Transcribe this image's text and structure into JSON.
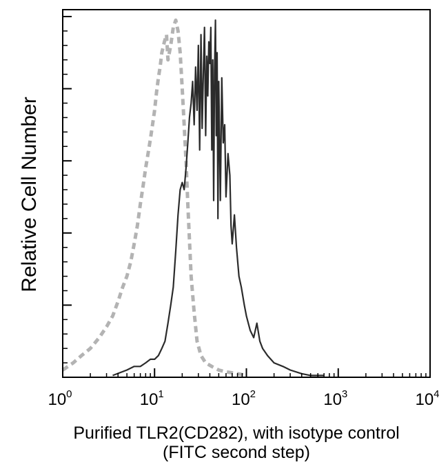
{
  "chart_data": {
    "type": "line",
    "title": "",
    "ylabel": "Relative Cell Number",
    "xlabel_lines": [
      "Purified TLR2(CD282), with isotype control",
      "(FITC second step)"
    ],
    "x_scale": "log",
    "xlim": [
      1,
      10000
    ],
    "ylim": [
      0,
      100
    ],
    "x_ticks": [
      {
        "base": "10",
        "exp": "0",
        "value": 1
      },
      {
        "base": "10",
        "exp": "1",
        "value": 10
      },
      {
        "base": "10",
        "exp": "2",
        "value": 100
      },
      {
        "base": "10",
        "exp": "3",
        "value": 1000
      },
      {
        "base": "10",
        "exp": "4",
        "value": 10000
      }
    ],
    "grid": false,
    "series": [
      {
        "role": "isotype control",
        "color": "#b3b3b3",
        "dash": true,
        "points": [
          [
            1.0,
            2
          ],
          [
            1.3,
            4
          ],
          [
            1.6,
            6
          ],
          [
            2.0,
            8
          ],
          [
            2.5,
            11
          ],
          [
            3.0,
            14
          ],
          [
            3.5,
            17
          ],
          [
            4.0,
            21
          ],
          [
            4.5,
            25
          ],
          [
            5.0,
            28
          ],
          [
            5.5,
            32
          ],
          [
            6.0,
            37
          ],
          [
            6.5,
            42
          ],
          [
            7.0,
            48
          ],
          [
            7.5,
            53
          ],
          [
            8.0,
            58
          ],
          [
            8.5,
            62
          ],
          [
            9.0,
            66
          ],
          [
            9.5,
            70
          ],
          [
            10.0,
            74
          ],
          [
            10.5,
            79
          ],
          [
            11.0,
            83
          ],
          [
            11.5,
            86
          ],
          [
            12.0,
            90
          ],
          [
            12.8,
            93
          ],
          [
            13.5,
            95
          ],
          [
            14.0,
            88
          ],
          [
            15.0,
            92
          ],
          [
            16.0,
            97
          ],
          [
            17.0,
            99
          ],
          [
            18.0,
            96
          ],
          [
            19.0,
            90
          ],
          [
            20.0,
            80
          ],
          [
            21.0,
            70
          ],
          [
            22.0,
            60
          ],
          [
            23.0,
            48
          ],
          [
            24.0,
            38
          ],
          [
            25.0,
            28
          ],
          [
            27.0,
            18
          ],
          [
            29.0,
            10
          ],
          [
            32.0,
            6
          ],
          [
            36.0,
            4
          ],
          [
            42.0,
            3
          ],
          [
            50.0,
            2
          ],
          [
            60.0,
            1.5
          ],
          [
            80.0,
            1
          ],
          [
            100.0,
            0.5
          ]
        ]
      },
      {
        "role": "TLR2",
        "color": "#2b2b2b",
        "dash": false,
        "points": [
          [
            3.5,
            0.5
          ],
          [
            5.0,
            2
          ],
          [
            6.0,
            3
          ],
          [
            7.0,
            3
          ],
          [
            8.0,
            4
          ],
          [
            9.0,
            5
          ],
          [
            10.0,
            5
          ],
          [
            11.0,
            6
          ],
          [
            12.0,
            8
          ],
          [
            13.0,
            10
          ],
          [
            14.0,
            15
          ],
          [
            15.0,
            20
          ],
          [
            16.0,
            25
          ],
          [
            17.0,
            35
          ],
          [
            18.0,
            45
          ],
          [
            19.0,
            52
          ],
          [
            20.0,
            54
          ],
          [
            21.0,
            52
          ],
          [
            22.0,
            58
          ],
          [
            23.0,
            65
          ],
          [
            24.0,
            72
          ],
          [
            25.0,
            76
          ],
          [
            26.0,
            82
          ],
          [
            27.0,
            70
          ],
          [
            28.0,
            86
          ],
          [
            29.0,
            74
          ],
          [
            30.0,
            92
          ],
          [
            31.0,
            63
          ],
          [
            32.0,
            95
          ],
          [
            33.0,
            69
          ],
          [
            34.0,
            85
          ],
          [
            35.0,
            97
          ],
          [
            36.0,
            67
          ],
          [
            37.0,
            89
          ],
          [
            38.0,
            78
          ],
          [
            39.0,
            93
          ],
          [
            40.0,
            87
          ],
          [
            41.0,
            97
          ],
          [
            42.0,
            63
          ],
          [
            43.0,
            88
          ],
          [
            44.0,
            49
          ],
          [
            45.0,
            85
          ],
          [
            46.0,
            99
          ],
          [
            47.0,
            67
          ],
          [
            48.0,
            90
          ],
          [
            49.0,
            44
          ],
          [
            50.0,
            82
          ],
          [
            52.0,
            49
          ],
          [
            54.0,
            83
          ],
          [
            56.0,
            65
          ],
          [
            58.0,
            70
          ],
          [
            60.0,
            50
          ],
          [
            63.0,
            62
          ],
          [
            66.0,
            56
          ],
          [
            68.0,
            42
          ],
          [
            70.0,
            37
          ],
          [
            74.0,
            45
          ],
          [
            78.0,
            36
          ],
          [
            83.0,
            28
          ],
          [
            88.0,
            25
          ],
          [
            95.0,
            20
          ],
          [
            100.0,
            17
          ],
          [
            110.0,
            13
          ],
          [
            120.0,
            11
          ],
          [
            130.0,
            15
          ],
          [
            140.0,
            10
          ],
          [
            150.0,
            8
          ],
          [
            170.0,
            6
          ],
          [
            200.0,
            4
          ],
          [
            250.0,
            3
          ],
          [
            300.0,
            2
          ],
          [
            400.0,
            1
          ],
          [
            500.0,
            0.5
          ],
          [
            700.0,
            0.5
          ]
        ]
      }
    ]
  }
}
